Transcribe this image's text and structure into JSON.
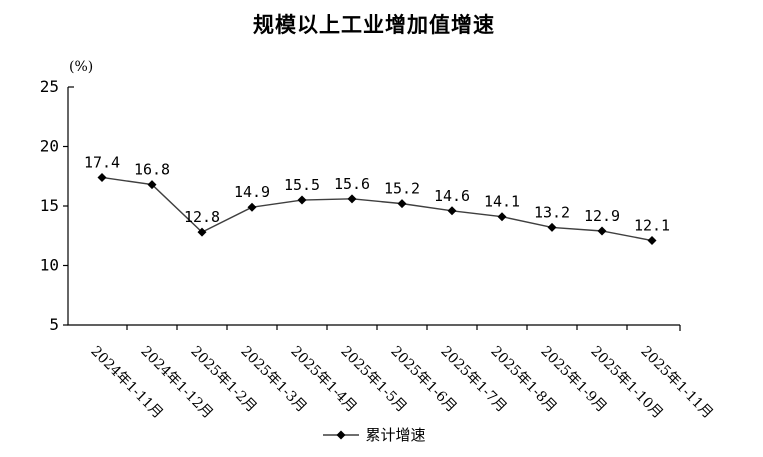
{
  "title": "规模以上工业增加值增速",
  "y_axis_unit": "(%)",
  "legend": {
    "series_label": "累计增速"
  },
  "colors": {
    "line": "#3f3f3f",
    "marker": "#000000",
    "axis": "#000000",
    "text": "#000000",
    "background": "#ffffff"
  },
  "chart_data": {
    "type": "line",
    "title": "规模以上工业增加值增速",
    "categories": [
      "2024年1-11月",
      "2024年1-12月",
      "2025年1-2月",
      "2025年1-3月",
      "2025年1-4月",
      "2025年1-5月",
      "2025年1-6月",
      "2025年1-7月",
      "2025年1-8月",
      "2025年1-9月",
      "2025年1-10月",
      "2025年1-11月"
    ],
    "series": [
      {
        "name": "累计增速",
        "values": [
          17.4,
          16.8,
          12.8,
          14.9,
          15.5,
          15.6,
          15.2,
          14.6,
          14.1,
          13.2,
          12.9,
          12.1
        ]
      }
    ],
    "xlabel": "",
    "ylabel": "(%)",
    "ylim": [
      5,
      25
    ],
    "y_ticks": [
      5,
      10,
      15,
      20,
      25
    ],
    "grid": false,
    "legend_position": "bottom",
    "marker": "diamond",
    "data_labels": true
  }
}
